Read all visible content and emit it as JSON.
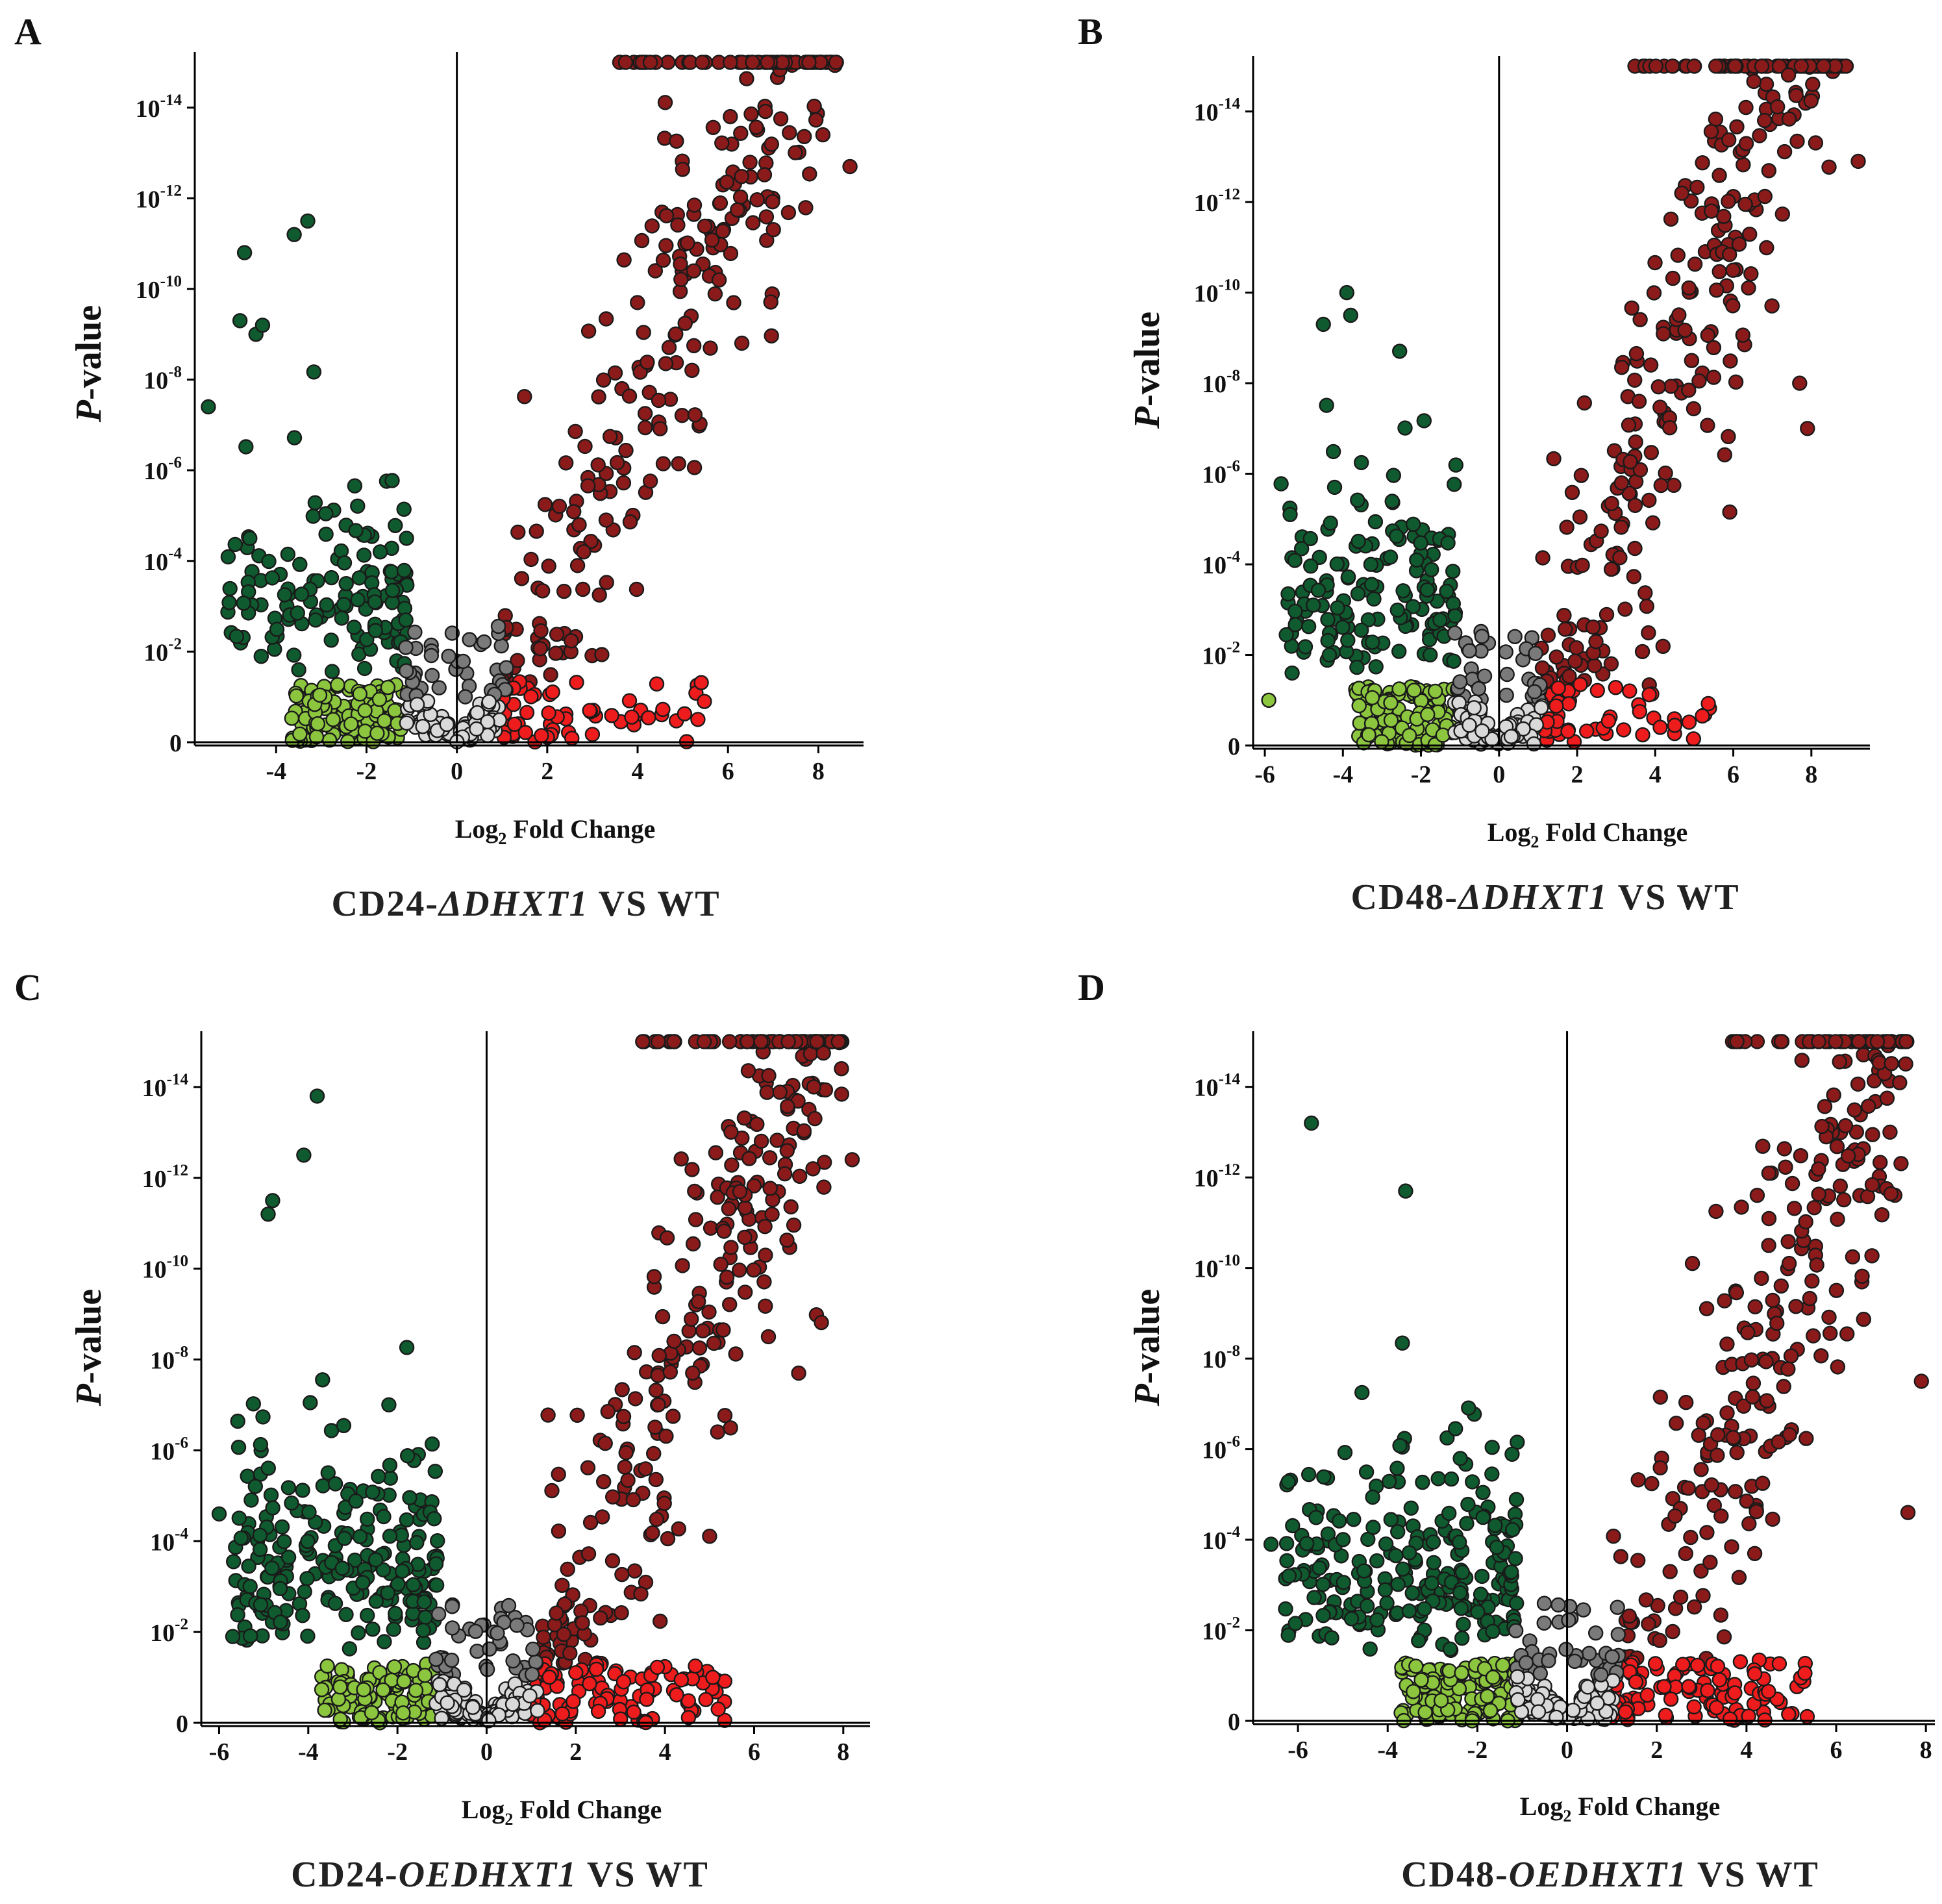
{
  "figure": {
    "palette": {
      "up_strong": "#8b1a1a",
      "up_weak": "#ee1c1c",
      "down_strong": "#0f5a2e",
      "down_weak": "#8cc63f",
      "ns_dark": "#7a7a7a",
      "ns_light": "#d9d9d9"
    }
  },
  "chart_data": [
    {
      "type": "scatter",
      "panel": "A",
      "title": "CD24-ΔDHXT1 VS WT",
      "title_parts": {
        "prefix": "CD24-",
        "italic": "ΔDHXT1",
        "suffix": " VS WT"
      },
      "xlabel": "Log2 Fold Change",
      "xlabel_parts": {
        "base": "Log",
        "sub": "2",
        "rest": " Fold Change"
      },
      "ylabel": "P-value",
      "ylabel_parts": {
        "italic": "P",
        "rest": "-value"
      },
      "xlim": [
        -5.8,
        9.0
      ],
      "xticks": [
        -4,
        -2,
        0,
        2,
        4,
        6,
        8
      ],
      "xtick_labels": [
        "-4",
        "-2",
        "0",
        "2",
        "4",
        "6",
        "8"
      ],
      "ylim": [
        0,
        15.2
      ],
      "ytick_values": [
        0,
        2,
        4,
        6,
        8,
        10,
        12,
        14
      ],
      "ytick_labels": [
        {
          "base": "0",
          "exp": ""
        },
        {
          "base": "10",
          "exp": "-2"
        },
        {
          "base": "10",
          "exp": "-4"
        },
        {
          "base": "10",
          "exp": "-6"
        },
        {
          "base": "10",
          "exp": "-8"
        },
        {
          "base": "10",
          "exp": "-10"
        },
        {
          "base": "10",
          "exp": "-12"
        },
        {
          "base": "10",
          "exp": "-14"
        }
      ],
      "note": "y is -log10(P-value); points capped at ~15",
      "cap": 15,
      "point_counts": {
        "up_strong": 260,
        "up_weak": 60,
        "down_strong": 140,
        "down_weak": 120,
        "ns": 120
      },
      "outliers": [
        {
          "x": -5.5,
          "y": 7.4,
          "group": "down_strong"
        },
        {
          "x": -4.7,
          "y": 10.8,
          "group": "down_strong"
        },
        {
          "x": -3.6,
          "y": 11.2,
          "group": "down_strong"
        },
        {
          "x": -3.3,
          "y": 11.5,
          "group": "down_strong"
        },
        {
          "x": -4.8,
          "y": 9.3,
          "group": "down_strong"
        },
        {
          "x": -4.3,
          "y": 9.2,
          "group": "down_strong"
        },
        {
          "x": 8.7,
          "y": 12.7,
          "group": "up_strong"
        },
        {
          "x": 8.1,
          "y": 13.4,
          "group": "up_strong"
        }
      ]
    },
    {
      "type": "scatter",
      "panel": "B",
      "title": "CD48-ΔDHXT1 VS WT",
      "title_parts": {
        "prefix": "CD48-",
        "italic": "ΔDHXT1",
        "suffix": " VS WT"
      },
      "xlabel": "Log2 Fold Change",
      "xlabel_parts": {
        "base": "Log",
        "sub": "2",
        "rest": " Fold Change"
      },
      "ylabel": "P-value",
      "ylabel_parts": {
        "italic": "P",
        "rest": "-value"
      },
      "xlim": [
        -6.3,
        9.5
      ],
      "xticks": [
        -6,
        -4,
        -2,
        0,
        2,
        4,
        6,
        8
      ],
      "xtick_labels": [
        "-6",
        "-4",
        "-2",
        "0",
        "2",
        "4",
        "6",
        "8"
      ],
      "ylim": [
        0,
        15.2
      ],
      "ytick_values": [
        0,
        2,
        4,
        6,
        8,
        10,
        12,
        14
      ],
      "ytick_labels": [
        {
          "base": "0",
          "exp": ""
        },
        {
          "base": "10",
          "exp": "-2"
        },
        {
          "base": "10",
          "exp": "-4"
        },
        {
          "base": "10",
          "exp": "-6"
        },
        {
          "base": "10",
          "exp": "-8"
        },
        {
          "base": "10",
          "exp": "-10"
        },
        {
          "base": "10",
          "exp": "-12"
        },
        {
          "base": "10",
          "exp": "-14"
        }
      ],
      "note": "y is -log10(P-value); points capped at ~15",
      "cap": 15,
      "point_counts": {
        "up_strong": 290,
        "up_weak": 55,
        "down_strong": 150,
        "down_weak": 110,
        "ns": 120
      },
      "outliers": [
        {
          "x": -5.9,
          "y": 1.0,
          "group": "down_weak"
        },
        {
          "x": -5.3,
          "y": 1.6,
          "group": "down_strong"
        },
        {
          "x": -4.5,
          "y": 9.3,
          "group": "down_strong"
        },
        {
          "x": -3.9,
          "y": 10.0,
          "group": "down_strong"
        },
        {
          "x": -3.8,
          "y": 9.5,
          "group": "down_strong"
        },
        {
          "x": 9.2,
          "y": 12.9,
          "group": "up_strong"
        },
        {
          "x": 7.7,
          "y": 8.0,
          "group": "up_strong"
        },
        {
          "x": 7.9,
          "y": 7.0,
          "group": "up_strong"
        }
      ]
    },
    {
      "type": "scatter",
      "panel": "C",
      "title": "CD24-OEDHXT1 VS WT",
      "title_parts": {
        "prefix": "CD24-",
        "italic": "OEDHXT1",
        "suffix": " VS WT"
      },
      "xlabel": "Log2 Fold Change",
      "xlabel_parts": {
        "base": "Log",
        "sub": "2",
        "rest": " Fold Change"
      },
      "ylabel": "P-value",
      "ylabel_parts": {
        "italic": "P",
        "rest": "-value"
      },
      "xlim": [
        -6.4,
        8.6
      ],
      "xticks": [
        -6,
        -4,
        -2,
        0,
        2,
        4,
        6,
        8
      ],
      "xtick_labels": [
        "-6",
        "-4",
        "-2",
        "0",
        "2",
        "4",
        "6",
        "8"
      ],
      "ylim": [
        0,
        15.2
      ],
      "ytick_values": [
        0,
        2,
        4,
        6,
        8,
        10,
        12,
        14
      ],
      "ytick_labels": [
        {
          "base": "0",
          "exp": ""
        },
        {
          "base": "10",
          "exp": "-2"
        },
        {
          "base": "10",
          "exp": "-4"
        },
        {
          "base": "10",
          "exp": "-6"
        },
        {
          "base": "10",
          "exp": "-8"
        },
        {
          "base": "10",
          "exp": "-10"
        },
        {
          "base": "10",
          "exp": "-12"
        },
        {
          "base": "10",
          "exp": "-14"
        }
      ],
      "note": "y is -log10(P-value); points capped at ~15",
      "cap": 15,
      "point_counts": {
        "up_strong": 280,
        "up_weak": 110,
        "down_strong": 230,
        "down_weak": 110,
        "ns": 140
      },
      "outliers": [
        {
          "x": -6.0,
          "y": 4.6,
          "group": "down_strong"
        },
        {
          "x": -3.8,
          "y": 13.8,
          "group": "down_strong"
        },
        {
          "x": -4.1,
          "y": 12.5,
          "group": "down_strong"
        },
        {
          "x": -4.8,
          "y": 11.5,
          "group": "down_strong"
        },
        {
          "x": -4.9,
          "y": 11.2,
          "group": "down_strong"
        },
        {
          "x": 8.2,
          "y": 12.4,
          "group": "up_strong"
        },
        {
          "x": 7.0,
          "y": 7.7,
          "group": "up_strong"
        }
      ]
    },
    {
      "type": "scatter",
      "panel": "D",
      "title": "CD48-OEDHXT1 VS WT",
      "title_parts": {
        "prefix": "CD48-",
        "italic": "OEDHXT1",
        "suffix": " VS WT"
      },
      "xlabel": "Log2 Fold Change",
      "xlabel_parts": {
        "base": "Log",
        "sub": "2",
        "rest": " Fold Change"
      },
      "ylabel": "P-value",
      "ylabel_parts": {
        "italic": "P",
        "rest": "-value"
      },
      "xlim": [
        -7.0,
        8.2
      ],
      "xticks": [
        -6,
        -4,
        -2,
        0,
        2,
        4,
        6,
        8
      ],
      "xtick_labels": [
        "-6",
        "-4",
        "-2",
        "0",
        "2",
        "4",
        "6",
        "8"
      ],
      "ylim": [
        0,
        15.2
      ],
      "ytick_values": [
        0,
        2,
        4,
        6,
        8,
        10,
        12,
        14
      ],
      "ytick_labels": [
        {
          "base": "0",
          "exp": ""
        },
        {
          "base": "10",
          "exp": "-2"
        },
        {
          "base": "10",
          "exp": "-4"
        },
        {
          "base": "10",
          "exp": "-6"
        },
        {
          "base": "10",
          "exp": "-8"
        },
        {
          "base": "10",
          "exp": "-10"
        },
        {
          "base": "10",
          "exp": "-12"
        },
        {
          "base": "10",
          "exp": "-14"
        }
      ],
      "note": "y is -log10(P-value); points capped at ~15",
      "cap": 15,
      "point_counts": {
        "up_strong": 250,
        "up_weak": 110,
        "down_strong": 240,
        "down_weak": 130,
        "ns": 150
      },
      "outliers": [
        {
          "x": -5.7,
          "y": 13.2,
          "group": "down_strong"
        },
        {
          "x": -6.6,
          "y": 3.9,
          "group": "down_strong"
        },
        {
          "x": -6.2,
          "y": 3.2,
          "group": "down_strong"
        },
        {
          "x": -3.6,
          "y": 11.7,
          "group": "down_strong"
        },
        {
          "x": 7.9,
          "y": 7.5,
          "group": "up_strong"
        },
        {
          "x": 7.6,
          "y": 4.6,
          "group": "up_strong"
        },
        {
          "x": 7.2,
          "y": 13.0,
          "group": "up_strong"
        }
      ]
    }
  ]
}
